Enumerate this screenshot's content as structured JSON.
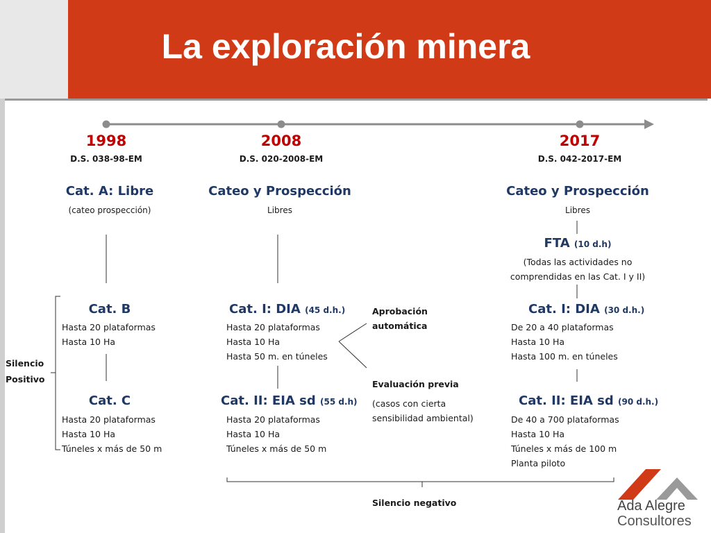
{
  "title": "La exploración minera",
  "timeline": [
    {
      "year": "1998",
      "decree": "D.S. 038-98-EM"
    },
    {
      "year": "2008",
      "decree": "D.S. 020-2008-EM"
    },
    {
      "year": "2017",
      "decree": "D.S. 042-2017-EM"
    }
  ],
  "col1998": {
    "catA": {
      "title": "Cat. A: Libre",
      "sub": "(cateo prospección)"
    },
    "catB": {
      "title": "Cat. B",
      "lines": [
        "Hasta 20 plataformas",
        "Hasta 10 Ha"
      ]
    },
    "catC": {
      "title": "Cat. C",
      "lines": [
        "Hasta 20 plataformas",
        "Hasta 10 Ha",
        "Túneles x más de 50 m"
      ]
    }
  },
  "col2008": {
    "cateo": {
      "title": "Cateo y Prospección",
      "sub": "Libres"
    },
    "cat1": {
      "title": "Cat. I: DIA",
      "days": "(45 d.h.)",
      "lines": [
        "Hasta 20 plataformas",
        "Hasta 10 Ha",
        "Hasta 50 m. en túneles"
      ]
    },
    "cat2": {
      "title": "Cat. II: EIA sd",
      "days": "(55 d.h)",
      "lines": [
        "Hasta 20 plataformas",
        "Hasta 10 Ha",
        "Túneles x más de 50 m"
      ]
    }
  },
  "middle": {
    "aprobacion": [
      "Aprobación",
      "automática"
    ],
    "evaluacion": "Evaluación previa",
    "casos": [
      "(casos con cierta",
      "sensibilidad ambiental)"
    ]
  },
  "col2017": {
    "cateo": {
      "title": "Cateo y Prospección",
      "sub": "Libres"
    },
    "fta": {
      "title": "FTA",
      "days": "(10 d.h)",
      "lines": [
        "(Todas las actividades no",
        "comprendidas en las Cat. I y II)"
      ]
    },
    "cat1": {
      "title": "Cat. I: DIA",
      "days": "(30 d.h.)",
      "lines": [
        "De 20 a 40 plataformas",
        "Hasta 10 Ha",
        "Hasta 100 m. en túneles"
      ]
    },
    "cat2": {
      "title": "Cat. II: EIA sd",
      "days": "(90 d.h.)",
      "lines": [
        "De 40 a 700 plataformas",
        "Hasta 10 Ha",
        "Túneles x más de 100 m",
        "Planta piloto"
      ]
    }
  },
  "silencio_positivo": [
    "Silencio",
    "Positivo"
  ],
  "silencio_negativo": "Silencio negativo",
  "logo": {
    "line1": "Ada Alegre",
    "line2": "Consultores",
    "colors": {
      "red": "#d13a16",
      "gray": "#9a9a9a"
    }
  },
  "colors": {
    "title_bar": "#d13a16",
    "year": "#c00000",
    "category": "#1f3864"
  }
}
